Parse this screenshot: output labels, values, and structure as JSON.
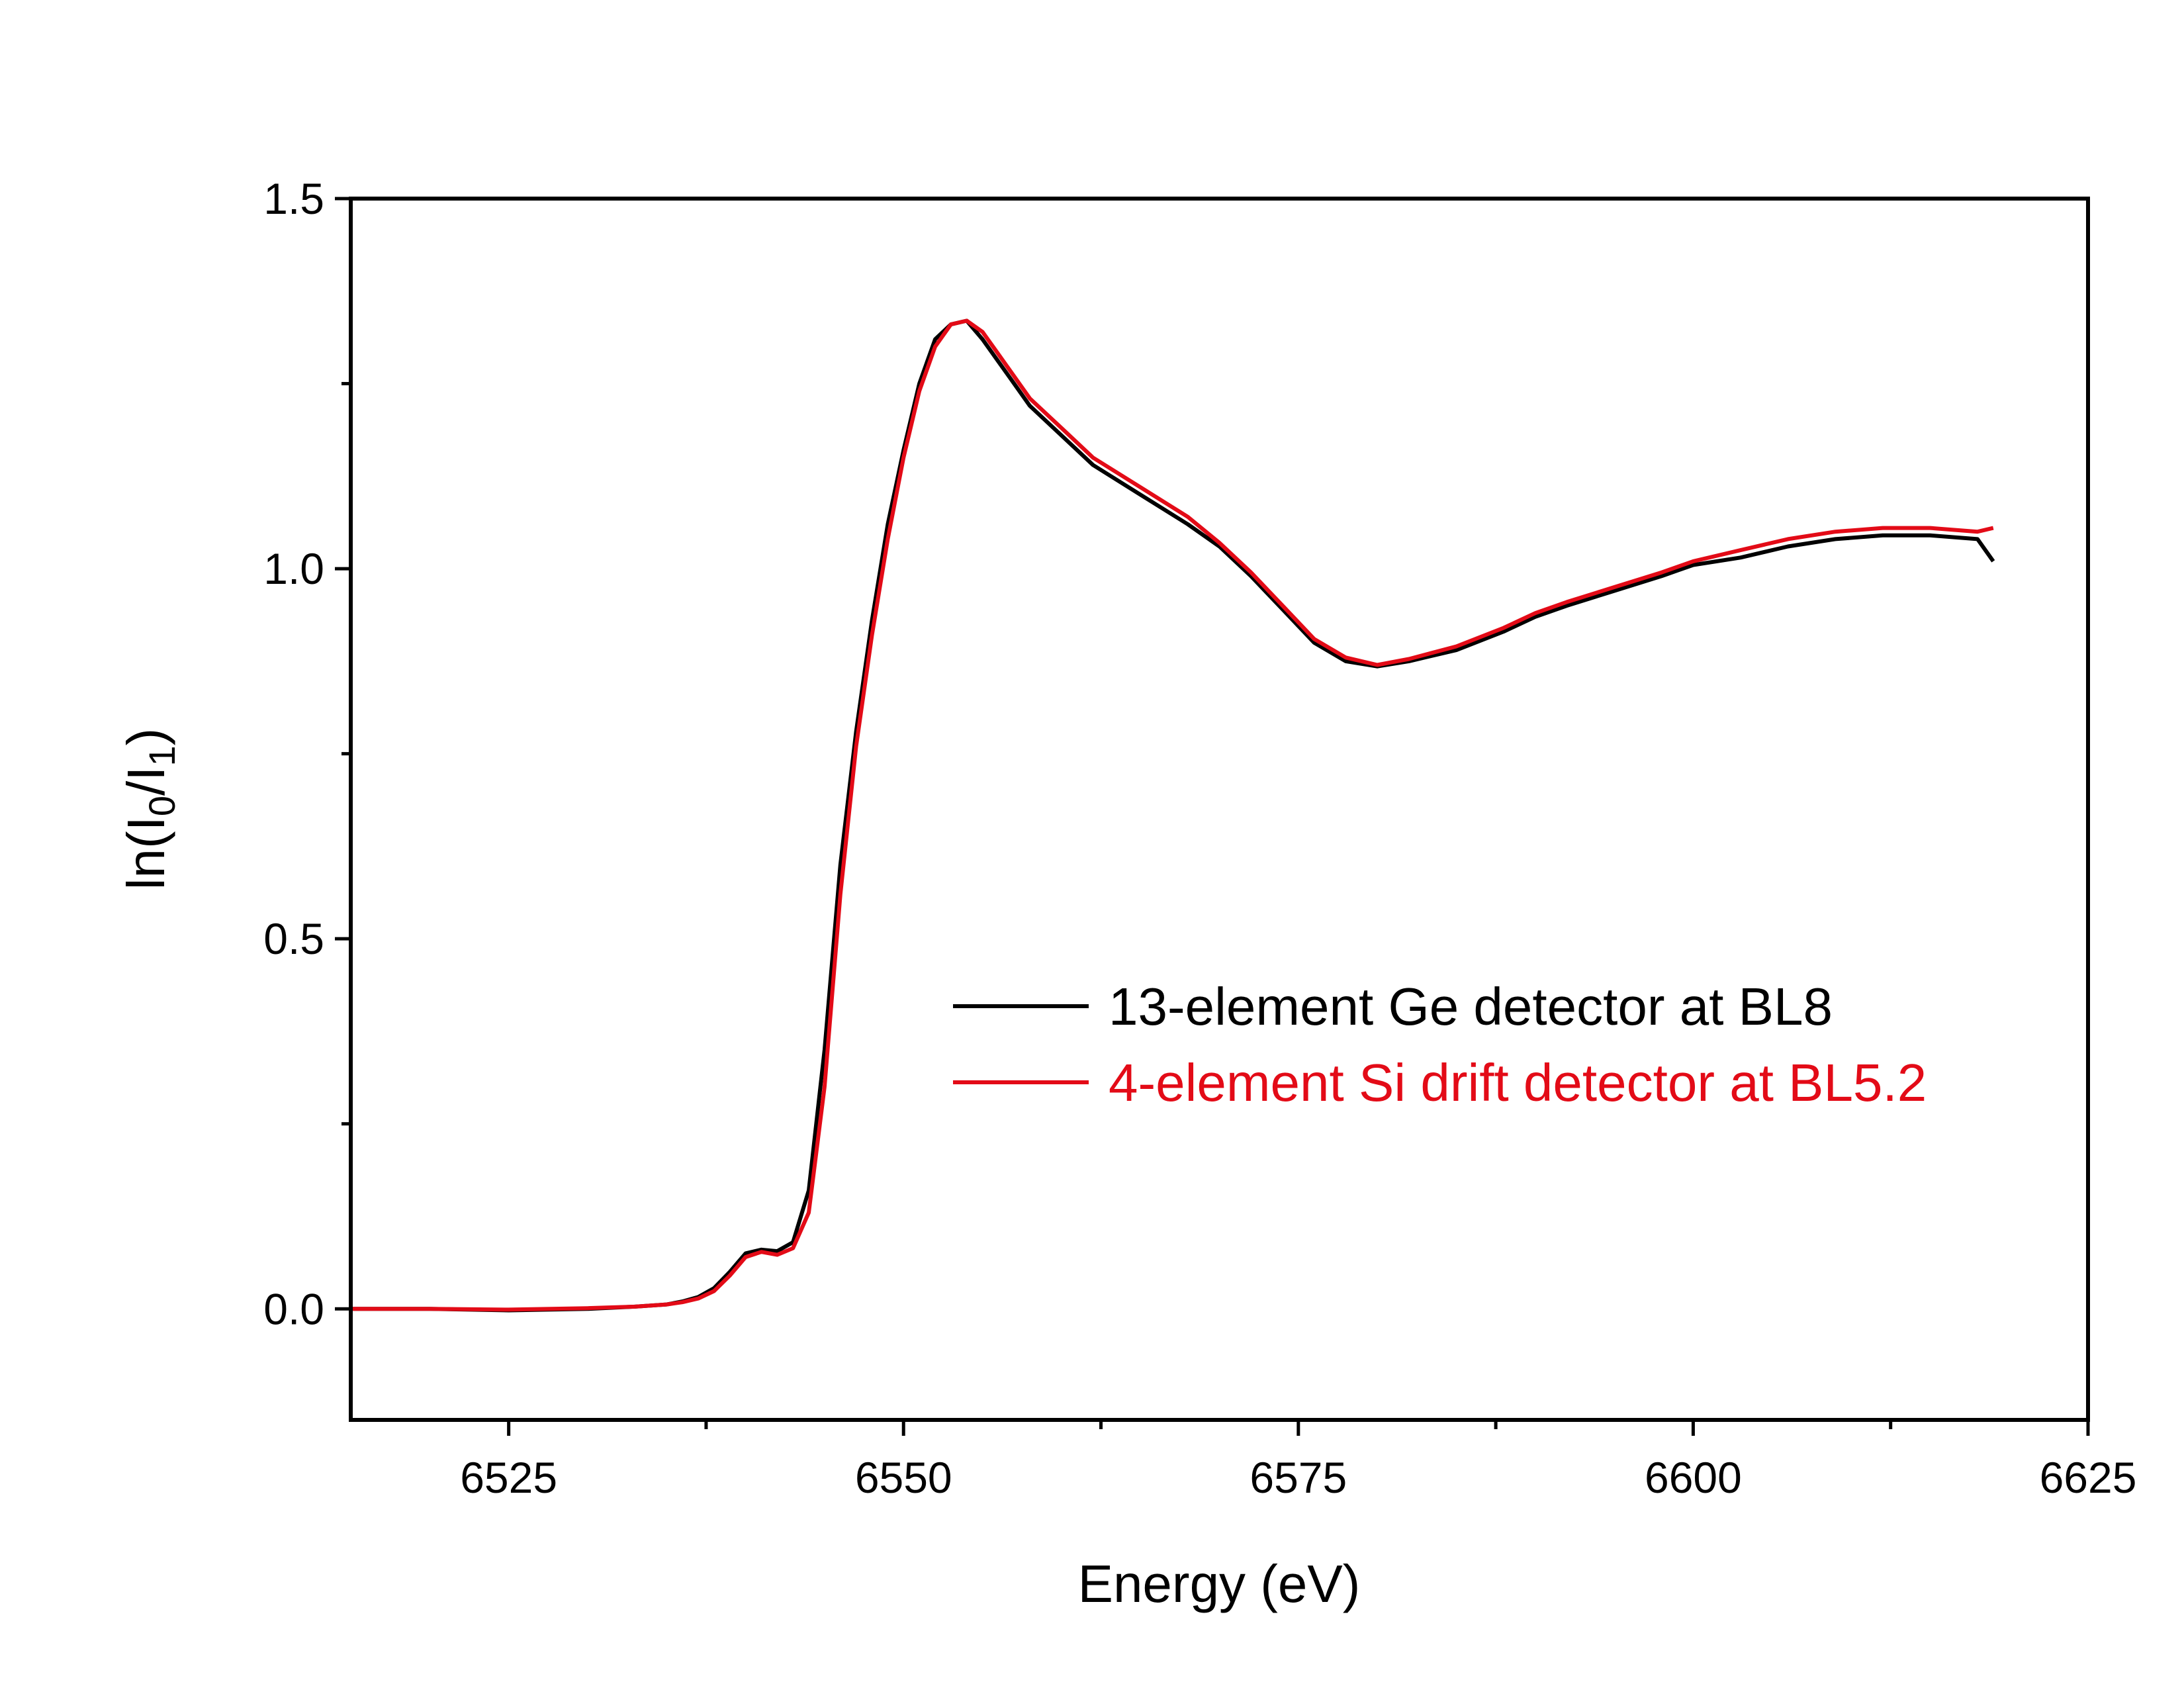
{
  "chart_data": {
    "type": "line",
    "xlabel": "Energy (eV)",
    "ylabel": {
      "prefix": "ln(I",
      "sub1": "0",
      "mid": "/I",
      "sub2": "1",
      "suffix": ")"
    },
    "xlim": [
      6515,
      6625
    ],
    "ylim": [
      -0.15,
      1.5
    ],
    "x_major_ticks": [
      6525,
      6550,
      6575,
      6600,
      6625
    ],
    "x_minor_ticks": [
      6537.5,
      6562.5,
      6587.5,
      6612.5
    ],
    "y_major_ticks": [
      0.0,
      0.5,
      1.0,
      1.5
    ],
    "y_minor_ticks": [
      0.25,
      0.75,
      1.25
    ],
    "x_tick_labels": [
      "6525",
      "6550",
      "6575",
      "6600",
      "6625"
    ],
    "y_tick_labels": [
      "0.0",
      "0.5",
      "1.0",
      "1.5"
    ],
    "legend_position": "center-right",
    "series": [
      {
        "name": "13-element Ge detector at BL8",
        "color": "#000000",
        "x": [
          6515,
          6520,
          6525,
          6530,
          6533,
          6535,
          6536,
          6537,
          6538,
          6539,
          6540,
          6541,
          6542,
          6543,
          6544,
          6545,
          6546,
          6547,
          6548,
          6549,
          6550,
          6551,
          6552,
          6553,
          6554,
          6555,
          6556,
          6557,
          6558,
          6560,
          6562,
          6565,
          6568,
          6570,
          6572,
          6574,
          6576,
          6578,
          6580,
          6582,
          6585,
          6588,
          6590,
          6592,
          6595,
          6598,
          6600,
          6603,
          6606,
          6609,
          6612,
          6615,
          6618,
          6619
        ],
        "y": [
          0.0,
          0.0,
          -0.002,
          0.0,
          0.003,
          0.006,
          0.01,
          0.016,
          0.028,
          0.05,
          0.075,
          0.08,
          0.078,
          0.09,
          0.16,
          0.35,
          0.6,
          0.78,
          0.93,
          1.06,
          1.16,
          1.25,
          1.31,
          1.33,
          1.335,
          1.31,
          1.28,
          1.25,
          1.22,
          1.18,
          1.14,
          1.1,
          1.06,
          1.03,
          0.99,
          0.945,
          0.9,
          0.875,
          0.868,
          0.875,
          0.89,
          0.915,
          0.935,
          0.95,
          0.97,
          0.99,
          1.005,
          1.015,
          1.03,
          1.04,
          1.045,
          1.045,
          1.04,
          1.01
        ]
      },
      {
        "name": "4-element Si drift detector at BL5.2",
        "color": "#e30b17",
        "x": [
          6515,
          6520,
          6525,
          6530,
          6533,
          6535,
          6536,
          6537,
          6538,
          6539,
          6540,
          6541,
          6542,
          6543,
          6544,
          6545,
          6546,
          6547,
          6548,
          6549,
          6550,
          6551,
          6552,
          6553,
          6554,
          6555,
          6556,
          6557,
          6558,
          6560,
          6562,
          6565,
          6568,
          6570,
          6572,
          6574,
          6576,
          6578,
          6580,
          6582,
          6585,
          6588,
          6590,
          6592,
          6595,
          6598,
          6600,
          6603,
          6606,
          6609,
          6612,
          6615,
          6618,
          6619
        ],
        "y": [
          0.0,
          0.0,
          -0.001,
          0.001,
          0.003,
          0.006,
          0.009,
          0.014,
          0.024,
          0.045,
          0.07,
          0.077,
          0.073,
          0.082,
          0.13,
          0.3,
          0.56,
          0.76,
          0.91,
          1.04,
          1.15,
          1.24,
          1.3,
          1.33,
          1.335,
          1.32,
          1.29,
          1.26,
          1.23,
          1.19,
          1.15,
          1.11,
          1.07,
          1.035,
          0.995,
          0.95,
          0.905,
          0.88,
          0.87,
          0.878,
          0.895,
          0.92,
          0.94,
          0.955,
          0.975,
          0.995,
          1.01,
          1.025,
          1.04,
          1.05,
          1.055,
          1.055,
          1.05,
          1.055
        ]
      }
    ]
  }
}
